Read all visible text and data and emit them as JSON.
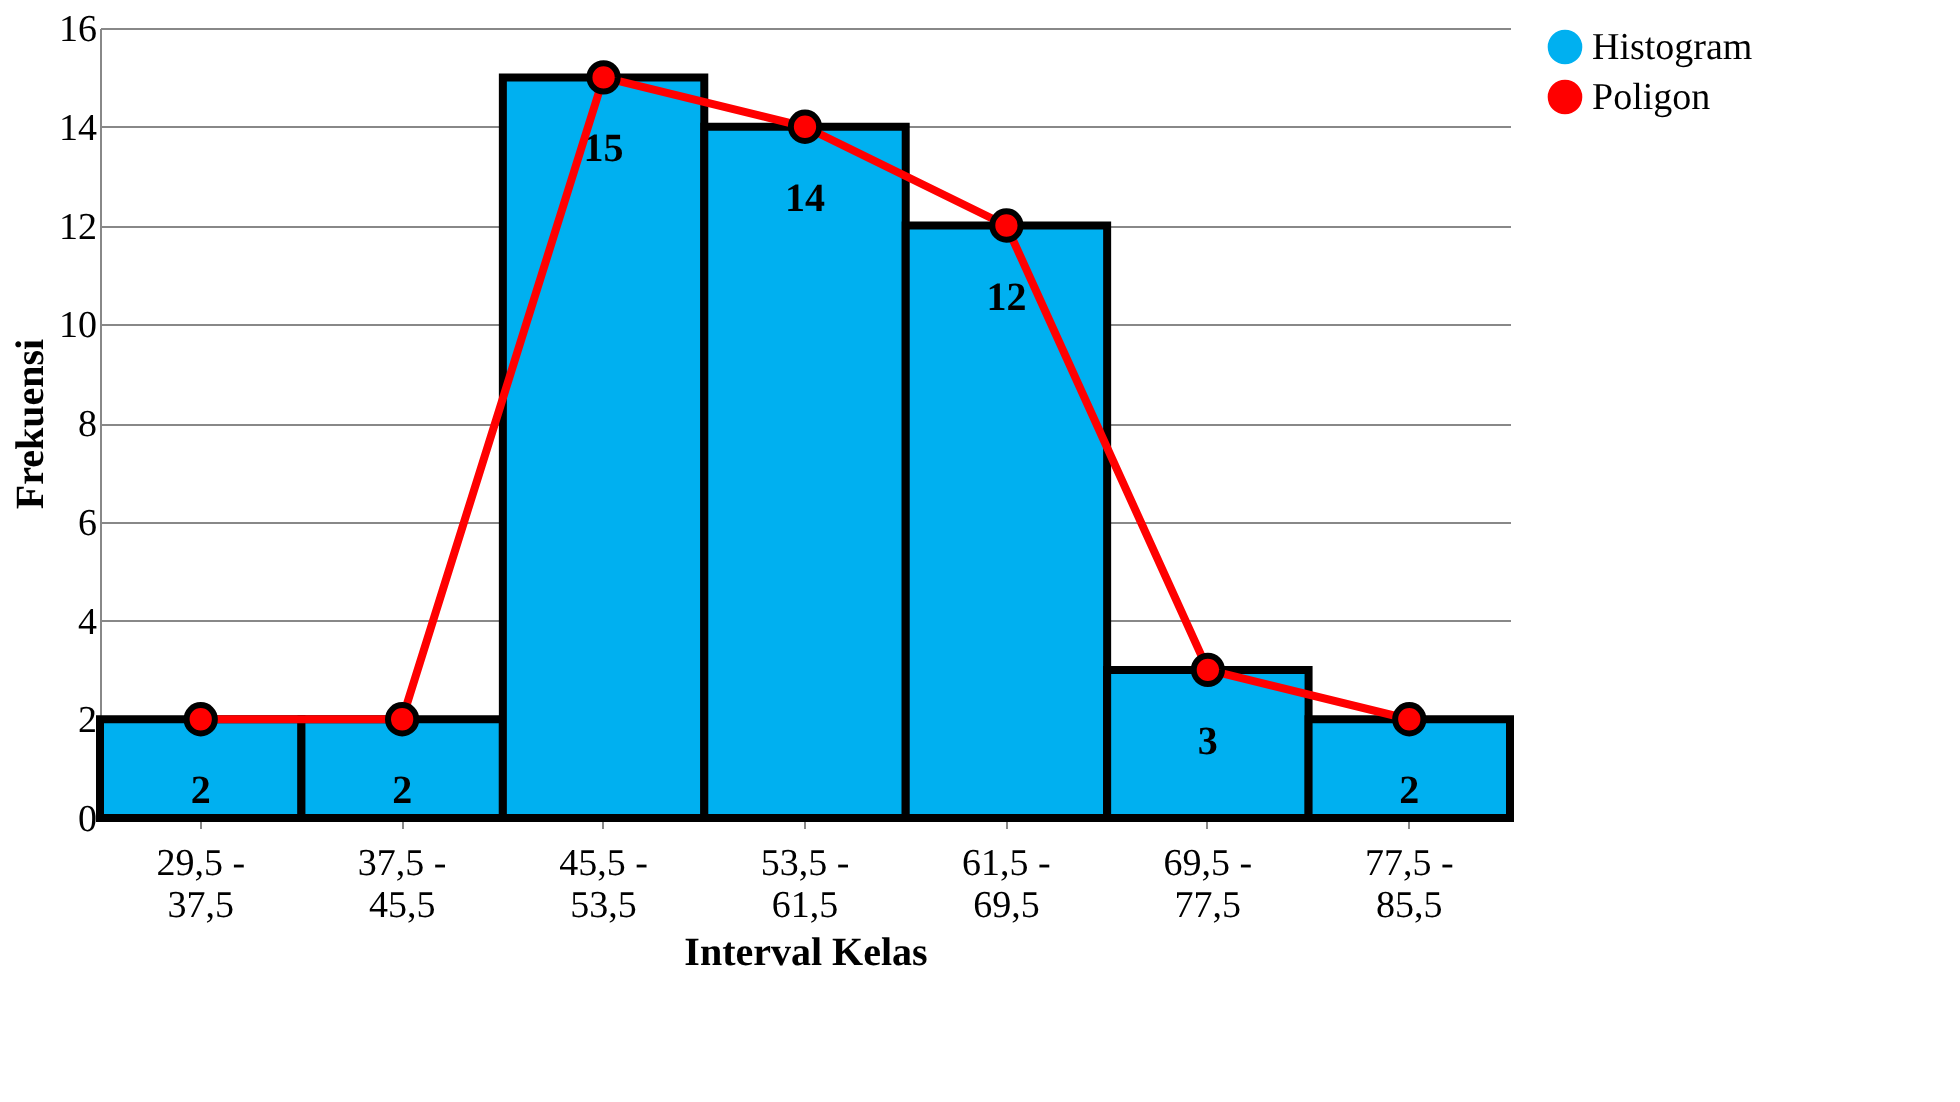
{
  "chart_data": {
    "type": "bar",
    "xlabel": "Interval Kelas",
    "ylabel": "Frekuensi",
    "categories": [
      "29,5 - 37,5",
      "37,5 - 45,5",
      "45,5 - 53,5",
      "53,5 - 61,5",
      "61,5 - 69,5",
      "69,5 - 77,5",
      "77,5 - 85,5"
    ],
    "series": [
      {
        "name": "Histogram",
        "color": "#00b0f0",
        "values": [
          2,
          2,
          15,
          14,
          12,
          3,
          2
        ],
        "value_labels": [
          "2",
          "2",
          "15",
          "14",
          "12",
          "3",
          "2"
        ]
      },
      {
        "name": "Poligon",
        "type": "line",
        "color": "#ff0000",
        "marker": "circle",
        "values": [
          2,
          2,
          15,
          14,
          12,
          3,
          2
        ]
      }
    ],
    "ylim": [
      0,
      16
    ],
    "yticks": [
      0,
      2,
      4,
      6,
      8,
      10,
      12,
      14,
      16
    ],
    "grid": "y",
    "legend": "right"
  }
}
